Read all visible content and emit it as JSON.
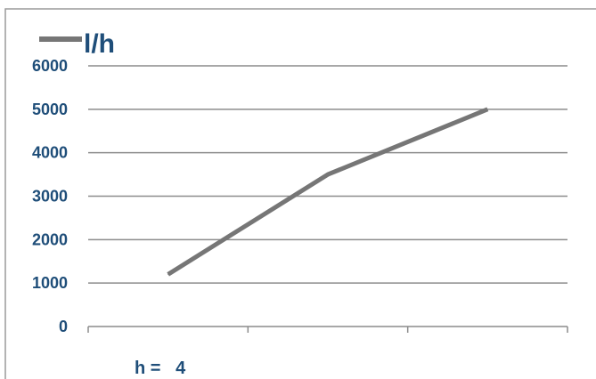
{
  "chart_data": {
    "type": "line",
    "categories": [
      "",
      "",
      ""
    ],
    "series": [
      {
        "name": "l/h",
        "values": [
          1200,
          3500,
          5000
        ]
      }
    ],
    "ylim": [
      0,
      6000
    ],
    "yticks": [
      0,
      1000,
      2000,
      3000,
      4000,
      5000,
      6000
    ],
    "ytick_labels": [
      "0",
      "1000",
      "2000",
      "3000",
      "4000",
      "5000",
      "6000"
    ],
    "xlabel": "h =   4",
    "ylabel": "",
    "title": "",
    "grid": true,
    "legend_position": "top-left",
    "colors": {
      "line": "#767676",
      "text": "#1f4e79",
      "grid": "#8c8c8c",
      "frame": "#9a9a9a"
    }
  }
}
